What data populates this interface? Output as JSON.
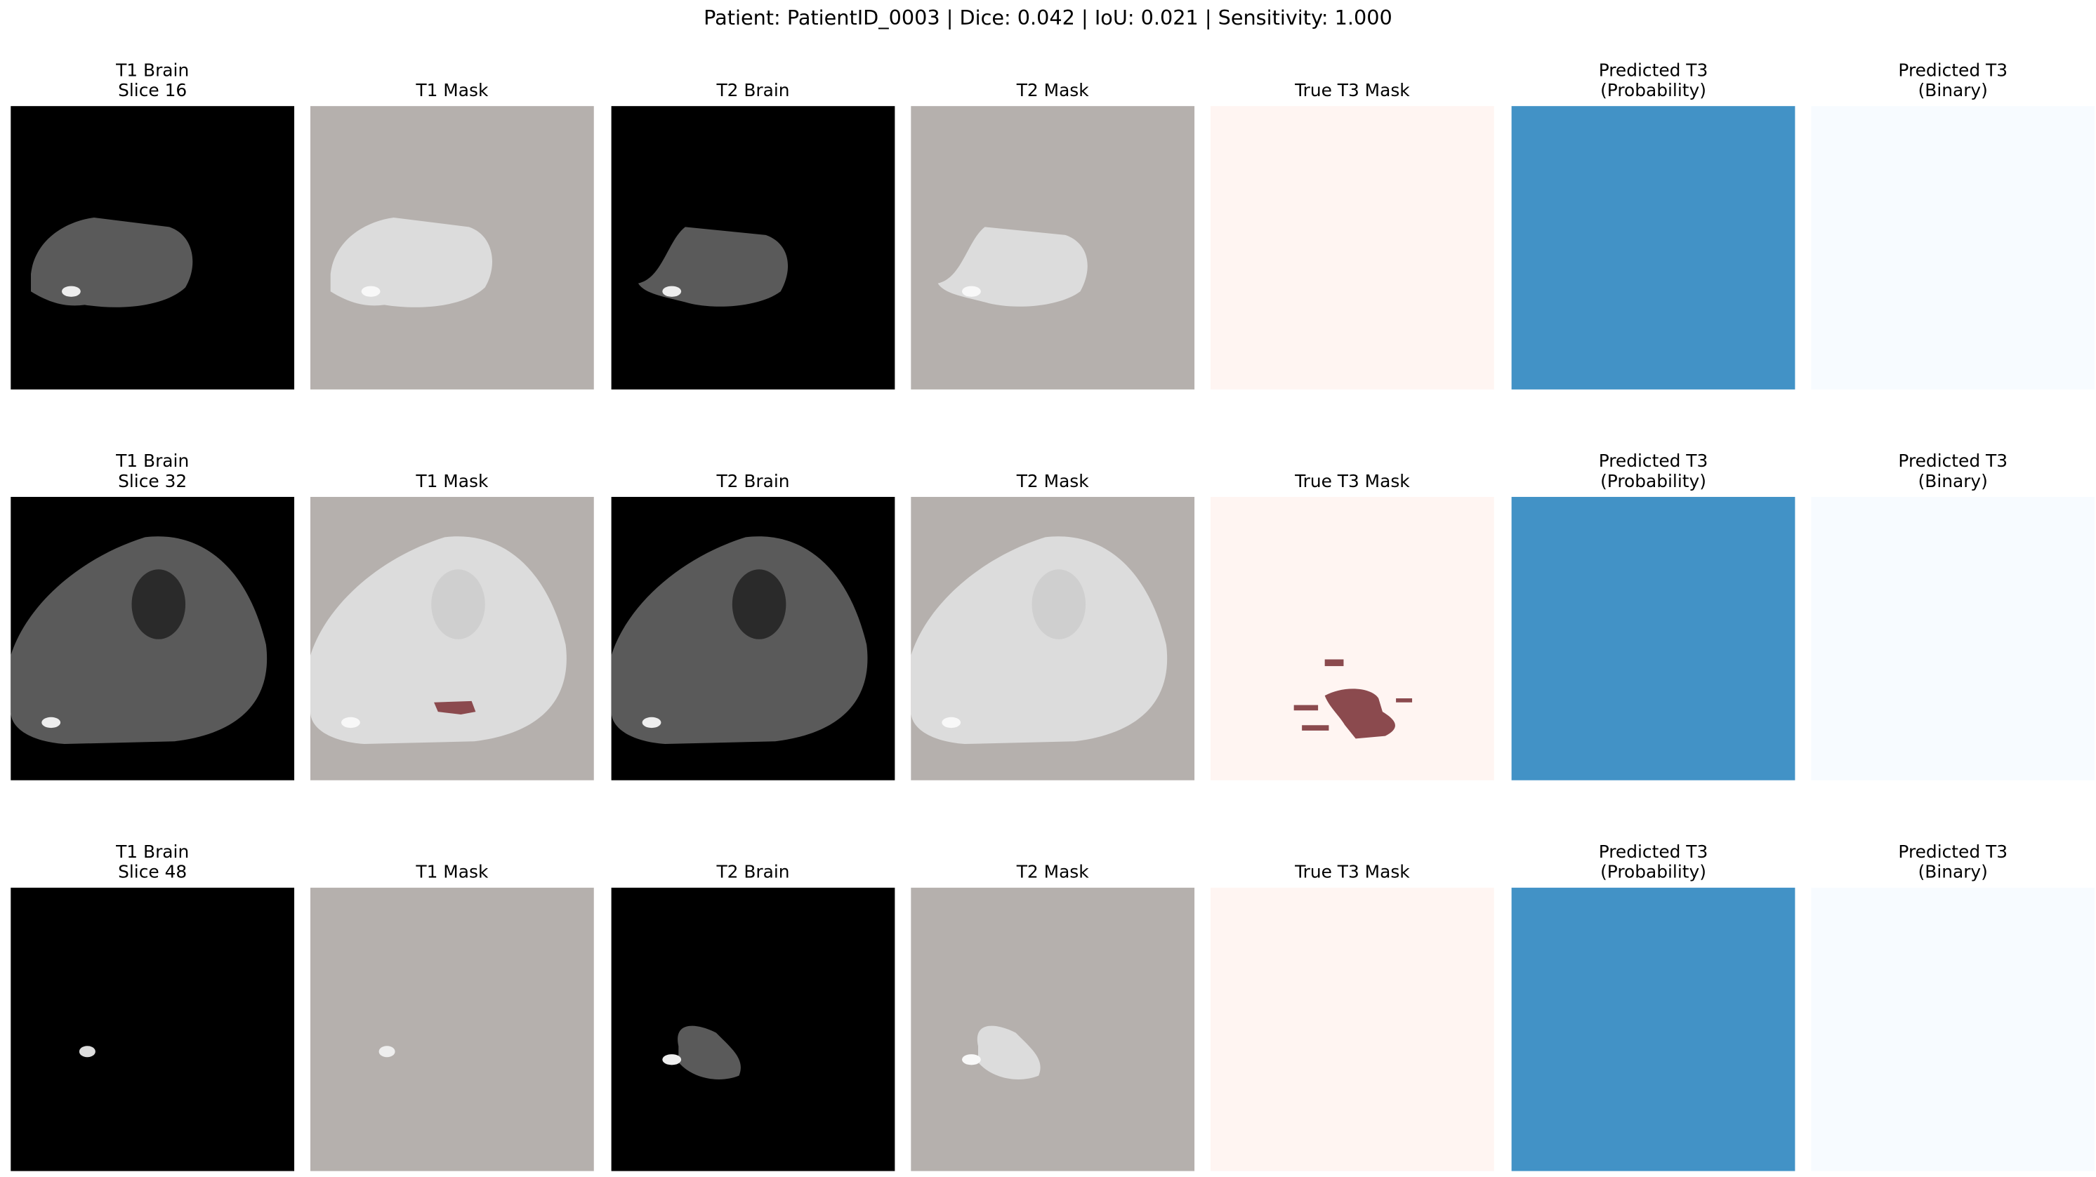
{
  "title": "Patient: PatientID_0003 | Dice: 0.042 | IoU: 0.021 | Sensitivity: 1.000",
  "rows": [
    {
      "panels": [
        {
          "title": [
            "T1 Brain",
            "Slice 16"
          ]
        },
        {
          "title": [
            "T1 Mask"
          ]
        },
        {
          "title": [
            "T2 Brain"
          ]
        },
        {
          "title": [
            "T2 Mask"
          ]
        },
        {
          "title": [
            "True T3 Mask"
          ]
        },
        {
          "title": [
            "Predicted T3",
            "(Probability)"
          ]
        },
        {
          "title": [
            "Predicted T3",
            "(Binary)"
          ]
        }
      ]
    },
    {
      "panels": [
        {
          "title": [
            "T1 Brain",
            "Slice 32"
          ]
        },
        {
          "title": [
            "T1 Mask"
          ]
        },
        {
          "title": [
            "T2 Brain"
          ]
        },
        {
          "title": [
            "T2 Mask"
          ]
        },
        {
          "title": [
            "True T3 Mask"
          ]
        },
        {
          "title": [
            "Predicted T3",
            "(Probability)"
          ]
        },
        {
          "title": [
            "Predicted T3",
            "(Binary)"
          ]
        }
      ]
    },
    {
      "panels": [
        {
          "title": [
            "T1 Brain",
            "Slice 48"
          ]
        },
        {
          "title": [
            "T1 Mask"
          ]
        },
        {
          "title": [
            "T2 Brain"
          ]
        },
        {
          "title": [
            "T2 Mask"
          ]
        },
        {
          "title": [
            "True T3 Mask"
          ]
        },
        {
          "title": [
            "Predicted T3",
            "(Probability)"
          ]
        },
        {
          "title": [
            "Predicted T3",
            "(Binary)"
          ]
        }
      ]
    }
  ]
}
